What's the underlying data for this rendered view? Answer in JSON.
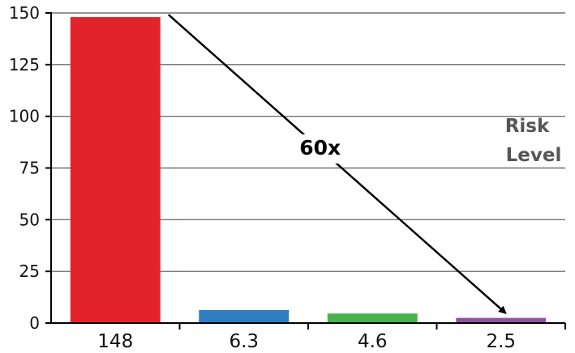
{
  "chart_data": {
    "type": "bar",
    "categories": [
      "148",
      "6.3",
      "4.6",
      "2.5"
    ],
    "values": [
      148,
      6.3,
      4.6,
      2.5
    ],
    "ylim": [
      0,
      150
    ],
    "yticks": [
      0,
      25,
      50,
      75,
      100,
      125,
      150
    ],
    "grid": true,
    "colors": [
      "#e3232b",
      "#2e7fbf",
      "#48b24c",
      "#8e559f"
    ],
    "side_label": [
      "Risk",
      "Level"
    ],
    "annotation": {
      "text": "60x",
      "from_category": "148",
      "to_category": "2.5"
    }
  }
}
